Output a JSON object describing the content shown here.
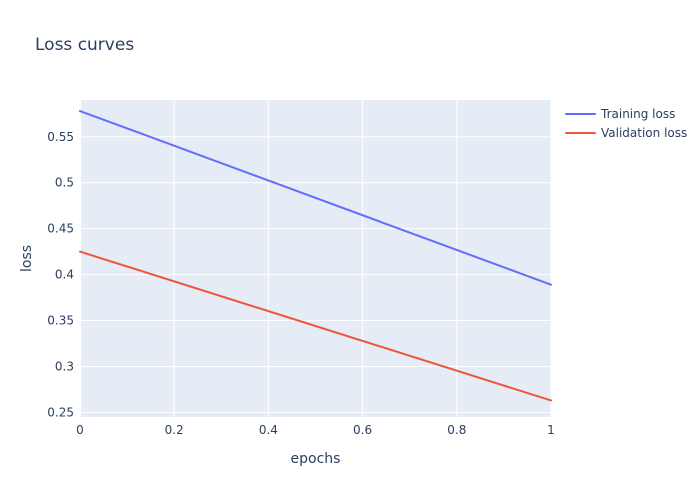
{
  "chart_data": {
    "type": "line",
    "title": "Loss curves",
    "xlabel": "epochs",
    "ylabel": "loss",
    "xlim": [
      0,
      1
    ],
    "ylim": [
      0.245,
      0.59
    ],
    "x_ticks": [
      0,
      0.2,
      0.4,
      0.6,
      0.8,
      1
    ],
    "x_tick_labels": [
      "0",
      "0.2",
      "0.4",
      "0.6",
      "0.8",
      "1"
    ],
    "y_ticks": [
      0.25,
      0.3,
      0.35,
      0.4,
      0.45,
      0.5,
      0.55
    ],
    "y_tick_labels": [
      "0.25",
      "0.3",
      "0.35",
      "0.4",
      "0.45",
      "0.5",
      "0.55"
    ],
    "grid": true,
    "legend_position": "top-right",
    "plot_background": "#e5ecf6",
    "grid_color": "#ffffff",
    "text_color": "#2a3f5f",
    "series": [
      {
        "name": "Training loss",
        "color": "#636efa",
        "x": [
          0,
          1
        ],
        "y": [
          0.578,
          0.389
        ]
      },
      {
        "name": "Validation loss",
        "color": "#ef553b",
        "x": [
          0,
          1
        ],
        "y": [
          0.425,
          0.263
        ]
      }
    ]
  }
}
